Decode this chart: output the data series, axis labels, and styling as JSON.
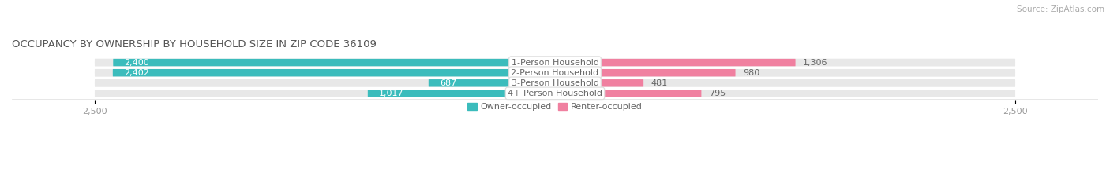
{
  "title": "OCCUPANCY BY OWNERSHIP BY HOUSEHOLD SIZE IN ZIP CODE 36109",
  "source": "Source: ZipAtlas.com",
  "categories": [
    "1-Person Household",
    "2-Person Household",
    "3-Person Household",
    "4+ Person Household"
  ],
  "owner_values": [
    2400,
    2402,
    687,
    1017
  ],
  "renter_values": [
    1306,
    980,
    481,
    795
  ],
  "owner_color": "#3BBCBC",
  "renter_color": "#F080A0",
  "bar_bg_color": "#E8E8E8",
  "axis_max": 2500,
  "title_fontsize": 9.5,
  "source_fontsize": 7.5,
  "label_fontsize": 8,
  "value_fontsize": 8,
  "tick_fontsize": 8,
  "legend_labels": [
    "Owner-occupied",
    "Renter-occupied"
  ],
  "background_color": "#FFFFFF",
  "bar_height": 0.72,
  "owner_text_color": "#FFFFFF",
  "category_text_color": "#666666",
  "value_text_color": "#666666",
  "tick_color": "#999999",
  "title_color": "#555555",
  "source_color": "#AAAAAA"
}
